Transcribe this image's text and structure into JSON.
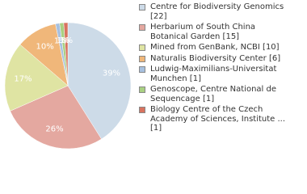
{
  "chart_data": {
    "type": "pie",
    "categories": [
      "Centre for Biodiversity Genomics [22]",
      "Herbarium of South China Botanical Garden [15]",
      "Mined from GenBank, NCBI [10]",
      "Naturalis Biodiversity Center [6]",
      "Ludwig-Maximilians-Universitat Munchen [1]",
      "Genoscope, Centre National de Sequencage [1]",
      "Biology Centre of the Czech Academy of Sciences, Institute ... [1]"
    ],
    "values": [
      39,
      26,
      17,
      10,
      1,
      1,
      1
    ],
    "colors": [
      "#cddbe8",
      "#e4a8a0",
      "#dfe4a3",
      "#f0b77a",
      "#a7c0df",
      "#a9d082",
      "#d8735f"
    ]
  }
}
